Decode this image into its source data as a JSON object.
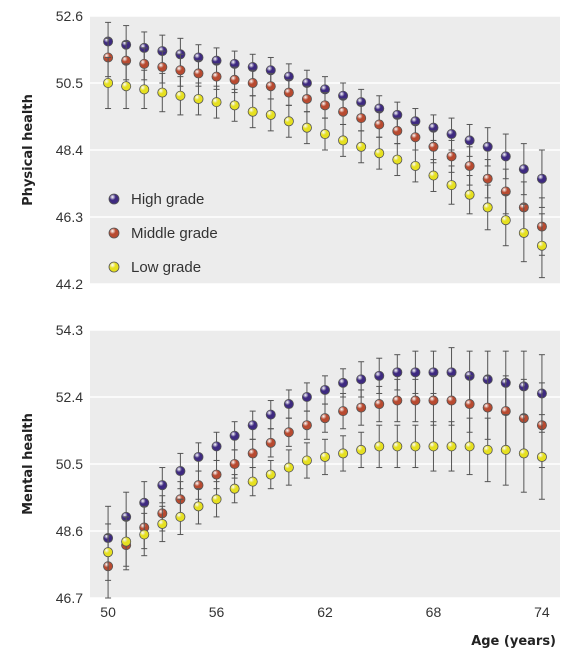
{
  "chart_data": [
    {
      "type": "scatter",
      "ylabel": "Physical health",
      "ylim": [
        44.2,
        52.6
      ],
      "yticks": [
        52.6,
        50.5,
        48.4,
        46.3,
        44.2
      ],
      "ytick_labels": [
        "52.6",
        "50.5",
        "48.4",
        "46.3",
        "44.2"
      ],
      "xlim": [
        49,
        75
      ],
      "grid": true,
      "error_bars": true,
      "legend": {
        "placement": "bottom-left"
      },
      "x": [
        50,
        51,
        52,
        53,
        54,
        55,
        56,
        57,
        58,
        59,
        60,
        61,
        62,
        63,
        64,
        65,
        66,
        67,
        68,
        69,
        70,
        71,
        72,
        73,
        74
      ],
      "series": [
        {
          "name": "High grade",
          "color": "#3e2a80",
          "values": [
            51.8,
            51.7,
            51.6,
            51.5,
            51.4,
            51.3,
            51.2,
            51.1,
            51.0,
            50.9,
            50.7,
            50.5,
            50.3,
            50.1,
            49.9,
            49.7,
            49.5,
            49.3,
            49.1,
            48.9,
            48.7,
            48.5,
            48.2,
            47.8,
            47.5
          ],
          "errors": [
            0.6,
            0.6,
            0.5,
            0.5,
            0.5,
            0.4,
            0.4,
            0.4,
            0.4,
            0.4,
            0.4,
            0.4,
            0.4,
            0.4,
            0.4,
            0.4,
            0.4,
            0.4,
            0.4,
            0.5,
            0.5,
            0.6,
            0.7,
            0.8,
            0.9
          ]
        },
        {
          "name": "Middle grade",
          "color": "#b84a30",
          "values": [
            51.3,
            51.2,
            51.1,
            51.0,
            50.9,
            50.8,
            50.7,
            50.6,
            50.5,
            50.4,
            50.2,
            50.0,
            49.8,
            49.6,
            49.4,
            49.2,
            49.0,
            48.8,
            48.5,
            48.2,
            47.9,
            47.5,
            47.1,
            46.6,
            46.0
          ],
          "errors": [
            0.6,
            0.6,
            0.5,
            0.5,
            0.5,
            0.4,
            0.4,
            0.4,
            0.4,
            0.4,
            0.4,
            0.4,
            0.4,
            0.4,
            0.4,
            0.4,
            0.4,
            0.4,
            0.5,
            0.5,
            0.6,
            0.6,
            0.7,
            0.8,
            0.9
          ]
        },
        {
          "name": "Low grade",
          "color": "#e6e020",
          "values": [
            50.5,
            50.4,
            50.3,
            50.2,
            50.1,
            50.0,
            49.9,
            49.8,
            49.6,
            49.5,
            49.3,
            49.1,
            48.9,
            48.7,
            48.5,
            48.3,
            48.1,
            47.9,
            47.6,
            47.3,
            47.0,
            46.6,
            46.2,
            45.8,
            45.4
          ],
          "errors": [
            0.8,
            0.7,
            0.6,
            0.6,
            0.6,
            0.5,
            0.5,
            0.5,
            0.5,
            0.5,
            0.5,
            0.5,
            0.5,
            0.5,
            0.5,
            0.5,
            0.5,
            0.5,
            0.5,
            0.6,
            0.6,
            0.7,
            0.8,
            0.9,
            1.0
          ]
        }
      ]
    },
    {
      "type": "scatter",
      "ylabel": "Mental health",
      "xlabel": "Age (years)",
      "ylim": [
        46.7,
        54.3
      ],
      "yticks": [
        54.3,
        52.4,
        50.5,
        48.6,
        46.7
      ],
      "ytick_labels": [
        "54.3",
        "52.4",
        "50.5",
        "48.6",
        "46.7"
      ],
      "xlim": [
        49,
        75
      ],
      "xticks": [
        50,
        56,
        62,
        68,
        74
      ],
      "xtick_labels": [
        "50",
        "56",
        "62",
        "68",
        "74"
      ],
      "grid": true,
      "error_bars": true,
      "x": [
        50,
        51,
        52,
        53,
        54,
        55,
        56,
        57,
        58,
        59,
        60,
        61,
        62,
        63,
        64,
        65,
        66,
        67,
        68,
        69,
        70,
        71,
        72,
        73,
        74
      ],
      "series": [
        {
          "name": "High grade",
          "color": "#3e2a80",
          "values": [
            48.4,
            49.0,
            49.4,
            49.9,
            50.3,
            50.7,
            51.0,
            51.3,
            51.6,
            51.9,
            52.2,
            52.4,
            52.6,
            52.8,
            52.9,
            53.0,
            53.1,
            53.1,
            53.1,
            53.1,
            53.0,
            52.9,
            52.8,
            52.7,
            52.5
          ],
          "errors": [
            0.9,
            0.7,
            0.6,
            0.5,
            0.5,
            0.4,
            0.4,
            0.4,
            0.4,
            0.4,
            0.4,
            0.4,
            0.4,
            0.4,
            0.5,
            0.5,
            0.5,
            0.6,
            0.6,
            0.7,
            0.7,
            0.8,
            0.9,
            1.0,
            1.1
          ]
        },
        {
          "name": "Middle grade",
          "color": "#b84a30",
          "values": [
            47.6,
            48.2,
            48.7,
            49.1,
            49.5,
            49.9,
            50.2,
            50.5,
            50.8,
            51.1,
            51.4,
            51.6,
            51.8,
            52.0,
            52.1,
            52.2,
            52.3,
            52.3,
            52.3,
            52.3,
            52.2,
            52.1,
            52.0,
            51.8,
            51.6
          ],
          "errors": [
            0.9,
            0.7,
            0.6,
            0.5,
            0.5,
            0.4,
            0.4,
            0.4,
            0.4,
            0.4,
            0.4,
            0.4,
            0.4,
            0.5,
            0.5,
            0.5,
            0.6,
            0.6,
            0.7,
            0.7,
            0.8,
            0.9,
            1.0,
            1.1,
            1.2
          ]
        },
        {
          "name": "Low grade",
          "color": "#e6e020",
          "values": [
            48.0,
            48.3,
            48.5,
            48.8,
            49.0,
            49.3,
            49.5,
            49.8,
            50.0,
            50.2,
            50.4,
            50.6,
            50.7,
            50.8,
            50.9,
            51.0,
            51.0,
            51.0,
            51.0,
            51.0,
            51.0,
            50.9,
            50.9,
            50.8,
            50.7
          ],
          "errors": [
            0.8,
            0.7,
            0.6,
            0.5,
            0.5,
            0.5,
            0.5,
            0.4,
            0.4,
            0.4,
            0.5,
            0.5,
            0.5,
            0.5,
            0.5,
            0.6,
            0.6,
            0.6,
            0.7,
            0.7,
            0.8,
            0.9,
            1.0,
            1.1,
            1.2
          ]
        }
      ]
    }
  ]
}
